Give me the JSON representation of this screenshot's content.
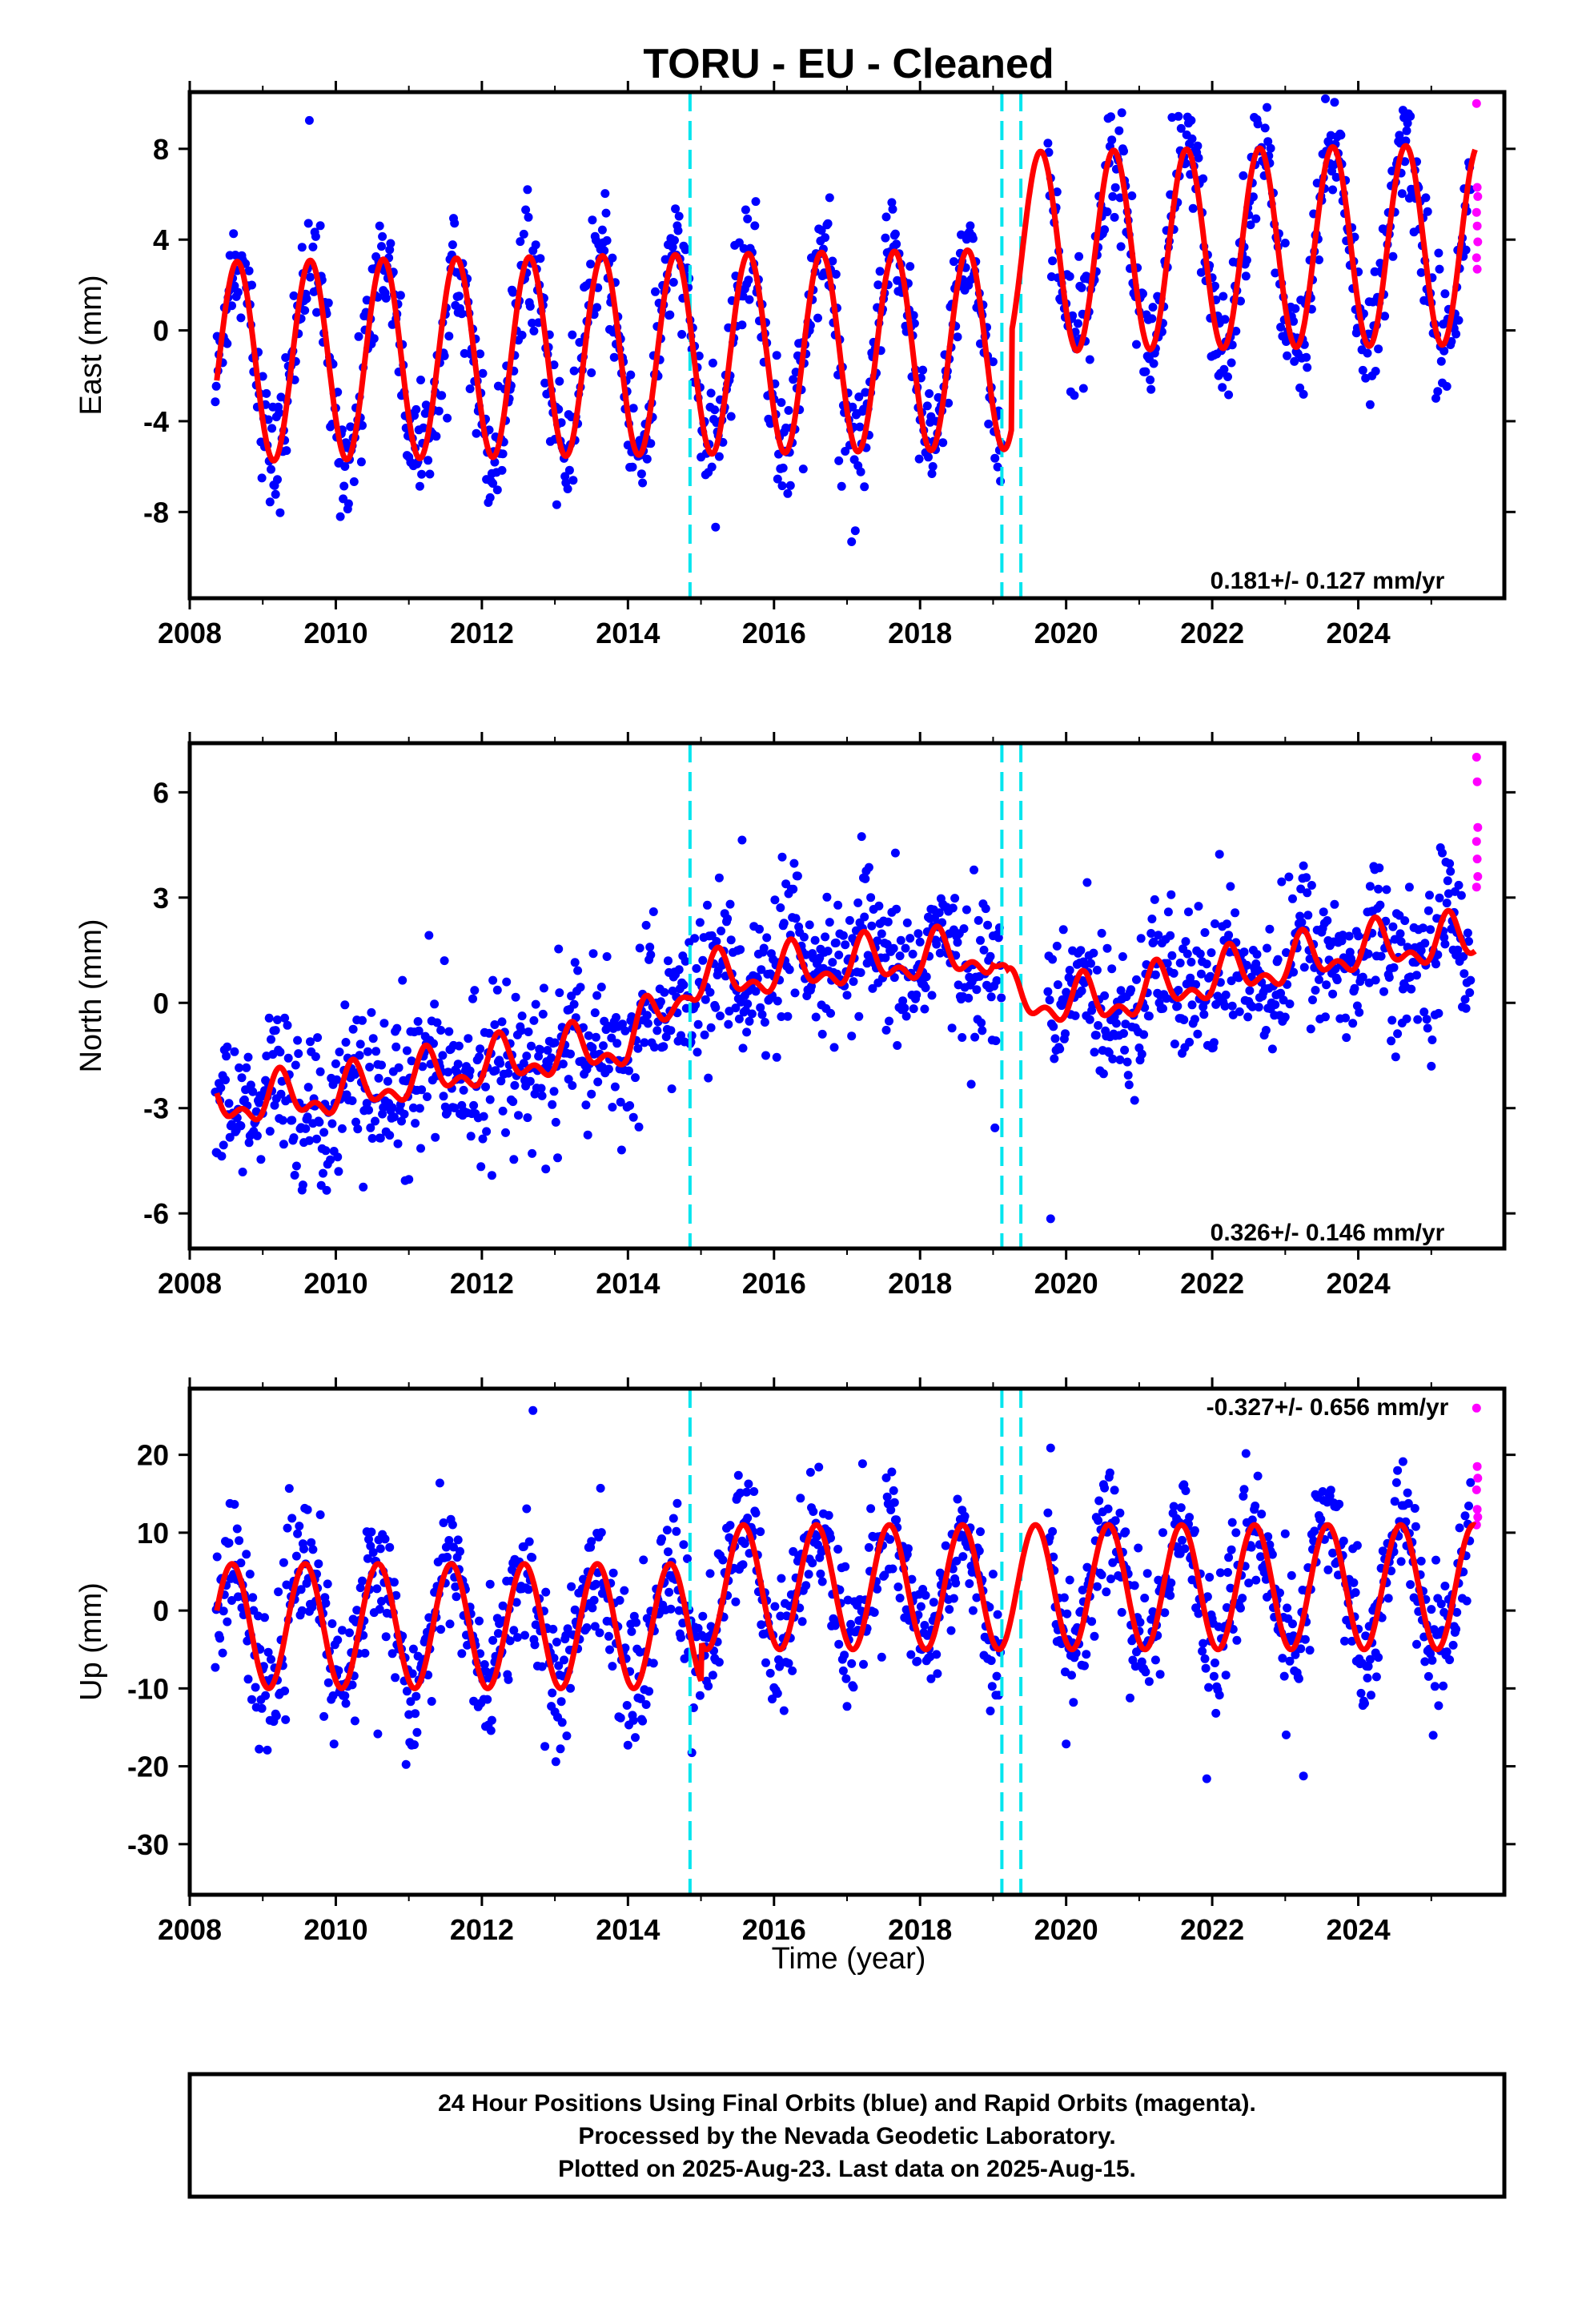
{
  "title": "TORU  - EU - Cleaned",
  "footer": {
    "line1": "24 Hour Positions Using Final Orbits (blue) and Rapid Orbits (magenta).",
    "line2": "Processed by the Nevada Geodetic Laboratory.",
    "line3": "Plotted on 2025-Aug-23. Last data on 2025-Aug-15."
  },
  "colors": {
    "final_orbits": "#0000ff",
    "rapid_orbits": "#ff00ff",
    "model_fit": "#ff0000",
    "equipment_change": "#00e5ee"
  },
  "chart_data": [
    {
      "type": "scatter",
      "panel": "east",
      "ylabel": "East (mm)",
      "xlabel": "",
      "xlim": [
        2008,
        2026
      ],
      "ylim": [
        -11.8,
        10.5
      ],
      "xticks": [
        "2008",
        "2010",
        "2012",
        "2014",
        "2016",
        "2018",
        "2020",
        "2022",
        "2024"
      ],
      "yticks": [
        "8",
        "4",
        "0",
        "-4",
        "-8"
      ],
      "rate_label": "0.181+/- 0.127 mm/yr",
      "equipment_changes": [
        2014.85,
        2019.12,
        2019.38
      ],
      "data_span": [
        2008.35,
        2025.6
      ],
      "gap": [
        2019.12,
        2019.75
      ],
      "model": {
        "offset_before_2019": -1.4,
        "offset_after_2019": 2.9,
        "annual_amplitude": 4.4,
        "peak_fraction": 0.45,
        "noise_sigma": 1.3
      },
      "series": [
        {
          "name": "Final Orbits (blue)",
          "color": "#0000ff"
        },
        {
          "name": "Rapid Orbits (magenta)",
          "color": "#ff00ff",
          "values": [
            10.0,
            6.3,
            5.9,
            5.2,
            4.6,
            3.9,
            3.2,
            2.7
          ]
        },
        {
          "name": "Model fit",
          "color": "#ff0000"
        }
      ]
    },
    {
      "type": "scatter",
      "panel": "north",
      "ylabel": "North (mm)",
      "xlabel": "",
      "xlim": [
        2008,
        2026
      ],
      "ylim": [
        -7.0,
        7.4
      ],
      "xticks": [
        "2008",
        "2010",
        "2012",
        "2014",
        "2016",
        "2018",
        "2020",
        "2022",
        "2024"
      ],
      "yticks": [
        "6",
        "3",
        "0",
        "-3",
        "-6"
      ],
      "rate_label": "0.326+/- 0.146 mm/yr",
      "equipment_changes": [
        2014.85,
        2019.12,
        2019.38
      ],
      "data_span": [
        2008.35,
        2025.6
      ],
      "gap": [
        2019.12,
        2019.75
      ],
      "model": {
        "offsets": [
          [
            2008.3,
            -2.9
          ],
          [
            2010.0,
            -2.6
          ],
          [
            2012.0,
            -1.8
          ],
          [
            2014.0,
            -1.2
          ],
          [
            2014.86,
            0.6
          ],
          [
            2017.0,
            1.1
          ],
          [
            2019.0,
            1.4
          ],
          [
            2019.2,
            0.1
          ],
          [
            2020.5,
            0.0
          ],
          [
            2022.0,
            0.7
          ],
          [
            2024.0,
            1.5
          ],
          [
            2025.6,
            1.8
          ]
        ],
        "annual_amplitude": 0.55,
        "noise_sigma": 1.05
      },
      "series": [
        {
          "name": "Final Orbits (blue)",
          "color": "#0000ff"
        },
        {
          "name": "Rapid Orbits (magenta)",
          "color": "#ff00ff",
          "values": [
            7.0,
            6.3,
            5.0,
            4.6,
            4.1,
            3.6,
            3.3
          ]
        },
        {
          "name": "Model fit",
          "color": "#ff0000"
        }
      ]
    },
    {
      "type": "scatter",
      "panel": "up",
      "ylabel": "Up (mm)",
      "xlabel": "Time (year)",
      "xlim": [
        2008,
        2026
      ],
      "ylim": [
        -36.5,
        28.5
      ],
      "xticks": [
        "2008",
        "2010",
        "2012",
        "2014",
        "2016",
        "2018",
        "2020",
        "2022",
        "2024"
      ],
      "yticks": [
        "20",
        "10",
        "0",
        "-10",
        "-20",
        "-30"
      ],
      "rate_label": "-0.327+/- 0.656 mm/yr",
      "equipment_changes": [
        2014.85,
        2019.12,
        2019.38
      ],
      "data_span": [
        2008.35,
        2025.6
      ],
      "gap": [
        2019.12,
        2019.75
      ],
      "model": {
        "offset_before_2015": -2.0,
        "offset_after_2015": 3.0,
        "annual_amplitude": 8.0,
        "peak_fraction": 0.58,
        "noise_sigma": 4.2
      },
      "series": [
        {
          "name": "Final Orbits (blue)",
          "color": "#0000ff"
        },
        {
          "name": "Rapid Orbits (magenta)",
          "color": "#ff00ff",
          "values": [
            26.0,
            18.5,
            17.0,
            15.5,
            13.0,
            12.0,
            11.0
          ]
        },
        {
          "name": "Model fit",
          "color": "#ff0000"
        }
      ]
    }
  ]
}
